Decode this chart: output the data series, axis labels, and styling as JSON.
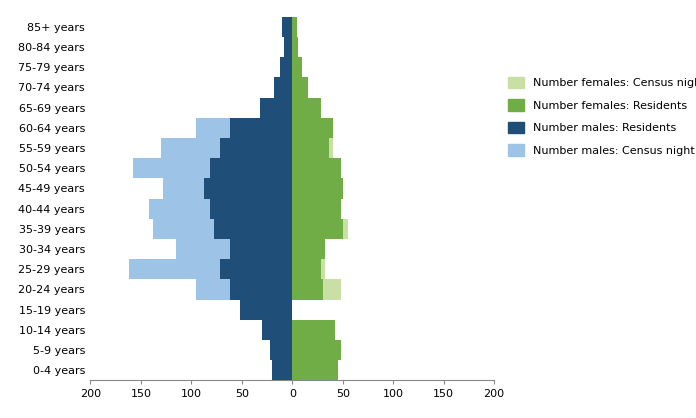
{
  "age_groups": [
    "0-4 years",
    "5-9 years",
    "10-14 years",
    "15-19 years",
    "20-24 years",
    "25-29 years",
    "30-34 years",
    "35-39 years",
    "40-44 years",
    "45-49 years",
    "50-54 years",
    "55-59 years",
    "60-64 years",
    "65-69 years",
    "70-74 years",
    "75-79 years",
    "80-84 years",
    "85+ years"
  ],
  "males_residents": [
    20,
    22,
    30,
    52,
    62,
    72,
    62,
    78,
    82,
    88,
    82,
    72,
    62,
    32,
    18,
    12,
    8,
    10
  ],
  "males_census_night": [
    0,
    0,
    0,
    0,
    95,
    162,
    115,
    138,
    142,
    128,
    158,
    130,
    95,
    0,
    0,
    0,
    0,
    0
  ],
  "females_residents": [
    45,
    48,
    42,
    0,
    30,
    28,
    32,
    50,
    48,
    50,
    48,
    36,
    40,
    28,
    16,
    10,
    6,
    5
  ],
  "females_census_night": [
    0,
    0,
    0,
    0,
    48,
    32,
    30,
    55,
    40,
    42,
    48,
    40,
    38,
    0,
    0,
    0,
    0,
    0
  ],
  "color_males_residents": "#1F4E79",
  "color_males_census_night": "#9DC3E6",
  "color_females_residents": "#70AD47",
  "color_females_census_night": "#C9E0A5",
  "xlim": 200,
  "legend_labels": [
    "Number females: Census night",
    "Number females: Residents",
    "Number males: Residents",
    "Number males: Census night"
  ],
  "legend_colors": [
    "#C9E0A5",
    "#70AD47",
    "#1F4E79",
    "#9DC3E6"
  ],
  "xlabel_ticks": [
    -200,
    -150,
    -100,
    -50,
    0,
    50,
    100,
    150,
    200
  ],
  "xlabel_labels": [
    "200",
    "150",
    "100",
    "50",
    "0",
    "50",
    "100",
    "150",
    "200"
  ]
}
